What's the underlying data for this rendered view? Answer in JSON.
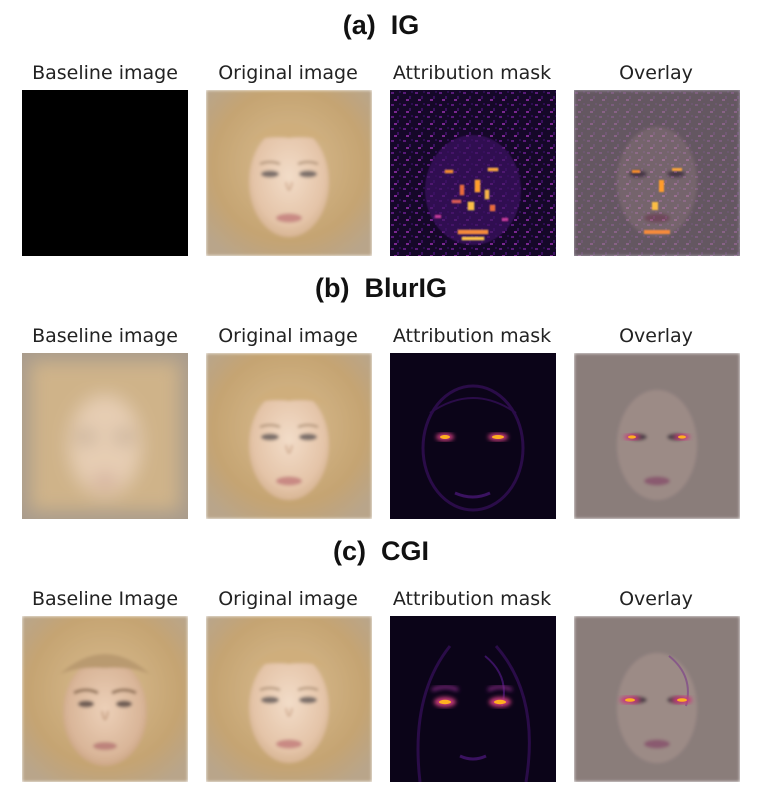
{
  "sections": [
    {
      "title": "(a)  IG",
      "labels": [
        "Baseline image",
        "Original image",
        "Attribution mask",
        "Overlay"
      ]
    },
    {
      "title": "(b)  BlurIG",
      "labels": [
        "Baseline image",
        "Original image",
        "Attribution mask",
        "Overlay"
      ]
    },
    {
      "title": "(c)  CGI",
      "labels": [
        "Baseline Image",
        "Original image",
        "Attribution mask",
        "Overlay"
      ]
    }
  ],
  "colors": {
    "background": "#ffffff",
    "hair": "#c9a978",
    "skin": "#e8cdb6",
    "mask_bg": "#0b0418",
    "mask_hot": "#ffb020",
    "mask_mid": "#a0249a"
  }
}
